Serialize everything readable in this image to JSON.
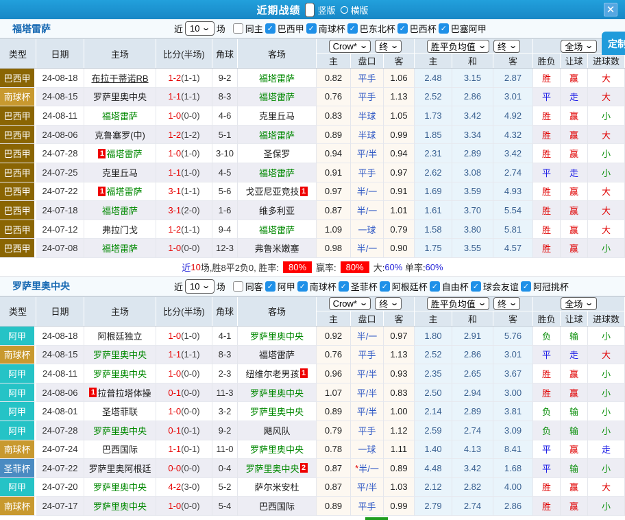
{
  "title_bar": {
    "title": "近期战绩",
    "radios": [
      {
        "label": "竖版",
        "selected": true
      },
      {
        "label": "横版",
        "selected": false
      }
    ]
  },
  "icons": {
    "close": "✕",
    "check": "✓",
    "dropdown": "⌄"
  },
  "customize_button": "定制",
  "league_colors": {
    "巴西甲": "#8a6503",
    "南球杯": "#c8992f",
    "阿甲": "#25c3c6",
    "圣菲杯": "#4a8bc2"
  },
  "result_colors": {
    "胜": "#e00000",
    "赢": "#e00000",
    "大": "#e00000",
    "平": "#1a1ae6",
    "走": "#1a1ae6",
    "负": "#0a8f0a",
    "输": "#0a8f0a",
    "小": "#0a8f0a"
  },
  "header": {
    "left": [
      "类型",
      "日期",
      "主场",
      "比分(半场)",
      "角球",
      "客场"
    ],
    "sub": [
      "主",
      "盘口",
      "客",
      "主",
      "和",
      "客",
      "胜负",
      "让球",
      "进球数"
    ],
    "selects": {
      "company": "Crow*",
      "final1": "终",
      "mean": "胜平负均值",
      "final2": "终",
      "scope": "全场"
    }
  },
  "sections": [
    {
      "team": "福塔雷萨",
      "filter": {
        "prefix": "近",
        "count": "10",
        "suffix": "场",
        "same_label": "同主",
        "same_checked": false,
        "leagues": [
          "巴西甲",
          "南球杯",
          "巴东北杯",
          "巴西杯",
          "巴塞阿甲"
        ]
      },
      "rows": [
        {
          "lg": "巴西甲",
          "date": "24-08-18",
          "home": "布拉干蒂诺RB",
          "hU": true,
          "score": "1-2",
          "half": "(1-1)",
          "corner": "9-2",
          "away": "福塔雷萨",
          "aG": true,
          "o1": "0.82",
          "hcap": "平手",
          "o2": "1.06",
          "m1": "2.48",
          "m2": "3.15",
          "m3": "2.87",
          "r1": "胜",
          "r2": "赢",
          "r3": "大"
        },
        {
          "lg": "南球杯",
          "date": "24-08-15",
          "home": "罗萨里奥中央",
          "score": "1-1",
          "half": "(1-1)",
          "corner": "8-3",
          "away": "福塔雷萨",
          "aG": true,
          "o1": "0.76",
          "hcap": "平手",
          "o2": "1.13",
          "m1": "2.52",
          "m2": "2.86",
          "m3": "3.01",
          "r1": "平",
          "r2": "走",
          "r3": "大"
        },
        {
          "lg": "巴西甲",
          "date": "24-08-11",
          "home": "福塔雷萨",
          "hG": true,
          "score": "1-0",
          "half": "(0-0)",
          "corner": "4-6",
          "away": "克里丘马",
          "o1": "0.83",
          "hcap": "半球",
          "o2": "1.05",
          "m1": "1.73",
          "m2": "3.42",
          "m3": "4.92",
          "r1": "胜",
          "r2": "赢",
          "r3": "小"
        },
        {
          "lg": "巴西甲",
          "date": "24-08-06",
          "home": "克鲁塞罗(中)",
          "score": "1-2",
          "half": "(1-2)",
          "corner": "5-1",
          "away": "福塔雷萨",
          "aG": true,
          "o1": "0.89",
          "hcap": "半球",
          "o2": "0.99",
          "m1": "1.85",
          "m2": "3.34",
          "m3": "4.32",
          "r1": "胜",
          "r2": "赢",
          "r3": "大"
        },
        {
          "lg": "巴西甲",
          "date": "24-07-28",
          "home": "福塔雷萨",
          "hG": true,
          "hCard": "1",
          "score": "1-0",
          "half": "(1-0)",
          "corner": "3-10",
          "away": "圣保罗",
          "o1": "0.94",
          "hcap": "平/半",
          "o2": "0.94",
          "m1": "2.31",
          "m2": "2.89",
          "m3": "3.42",
          "r1": "胜",
          "r2": "赢",
          "r3": "小"
        },
        {
          "lg": "巴西甲",
          "date": "24-07-25",
          "home": "克里丘马",
          "score": "1-1",
          "half": "(1-0)",
          "corner": "4-5",
          "away": "福塔雷萨",
          "aG": true,
          "o1": "0.91",
          "hcap": "平手",
          "o2": "0.97",
          "m1": "2.62",
          "m2": "3.08",
          "m3": "2.74",
          "r1": "平",
          "r2": "走",
          "r3": "小"
        },
        {
          "lg": "巴西甲",
          "date": "24-07-22",
          "home": "福塔雷萨",
          "hG": true,
          "hCard": "1",
          "score": "3-1",
          "half": "(1-1)",
          "corner": "5-6",
          "away": "戈亚尼亚竞技",
          "aCard": "1",
          "o1": "0.97",
          "hcap": "半/一",
          "o2": "0.91",
          "m1": "1.69",
          "m2": "3.59",
          "m3": "4.93",
          "r1": "胜",
          "r2": "赢",
          "r3": "大"
        },
        {
          "lg": "巴西甲",
          "date": "24-07-18",
          "home": "福塔雷萨",
          "hG": true,
          "score": "3-1",
          "half": "(2-0)",
          "corner": "1-6",
          "away": "维多利亚",
          "o1": "0.87",
          "hcap": "半/一",
          "o2": "1.01",
          "m1": "1.61",
          "m2": "3.70",
          "m3": "5.54",
          "r1": "胜",
          "r2": "赢",
          "r3": "大"
        },
        {
          "lg": "巴西甲",
          "date": "24-07-12",
          "home": "弗拉门戈",
          "score": "1-2",
          "half": "(1-1)",
          "corner": "9-4",
          "away": "福塔雷萨",
          "aG": true,
          "o1": "1.09",
          "hcap": "一球",
          "o2": "0.79",
          "m1": "1.58",
          "m2": "3.80",
          "m3": "5.81",
          "r1": "胜",
          "r2": "赢",
          "r3": "大"
        },
        {
          "lg": "巴西甲",
          "date": "24-07-08",
          "home": "福塔雷萨",
          "hG": true,
          "score": "1-0",
          "half": "(0-0)",
          "corner": "12-3",
          "away": "弗鲁米嫩塞",
          "o1": "0.98",
          "hcap": "半/一",
          "o2": "0.90",
          "m1": "1.75",
          "m2": "3.55",
          "m3": "4.57",
          "r1": "胜",
          "r2": "赢",
          "r3": "小"
        }
      ],
      "summary": {
        "lead": "近",
        "count": "10",
        "text1": "场,胜8平2负0, 胜率:",
        "badge1": "80%",
        "text2": "赢率:",
        "badge2": "80%",
        "text3": "大:",
        "val1": "60%",
        "text4": "单率:",
        "val2": "60%"
      }
    },
    {
      "team": "罗萨里奥中央",
      "filter": {
        "prefix": "近",
        "count": "10",
        "suffix": "场",
        "same_label": "同客",
        "same_checked": false,
        "leagues": [
          "阿甲",
          "南球杯",
          "圣菲杯",
          "阿根廷杯",
          "自由杯",
          "球会友谊",
          "阿冠挑杯"
        ]
      },
      "rows": [
        {
          "lg": "阿甲",
          "date": "24-08-18",
          "home": "阿根廷独立",
          "score": "1-0",
          "half": "(1-0)",
          "corner": "4-1",
          "away": "罗萨里奥中央",
          "aG": true,
          "o1": "0.92",
          "hcap": "半/一",
          "o2": "0.97",
          "m1": "1.80",
          "m2": "2.91",
          "m3": "5.76",
          "r1": "负",
          "r2": "输",
          "r3": "小"
        },
        {
          "lg": "南球杯",
          "date": "24-08-15",
          "home": "罗萨里奥中央",
          "hG": true,
          "score": "1-1",
          "half": "(1-1)",
          "corner": "8-3",
          "away": "福塔雷萨",
          "o1": "0.76",
          "hcap": "平手",
          "o2": "1.13",
          "m1": "2.52",
          "m2": "2.86",
          "m3": "3.01",
          "r1": "平",
          "r2": "走",
          "r3": "大"
        },
        {
          "lg": "阿甲",
          "date": "24-08-11",
          "home": "罗萨里奥中央",
          "hG": true,
          "score": "1-0",
          "half": "(0-0)",
          "corner": "2-3",
          "away": "纽维尔老男孩",
          "aCard": "1",
          "o1": "0.96",
          "hcap": "平/半",
          "o2": "0.93",
          "m1": "2.35",
          "m2": "2.65",
          "m3": "3.67",
          "r1": "胜",
          "r2": "赢",
          "r3": "小"
        },
        {
          "lg": "阿甲",
          "date": "24-08-06",
          "home": "拉普拉塔体操",
          "hCard": "1",
          "score": "0-1",
          "half": "(0-0)",
          "corner": "11-3",
          "away": "罗萨里奥中央",
          "aG": true,
          "o1": "1.07",
          "hcap": "平/半",
          "o2": "0.83",
          "m1": "2.50",
          "m2": "2.94",
          "m3": "3.00",
          "r1": "胜",
          "r2": "赢",
          "r3": "小"
        },
        {
          "lg": "阿甲",
          "date": "24-08-01",
          "home": "圣塔菲联",
          "score": "1-0",
          "half": "(0-0)",
          "corner": "3-2",
          "away": "罗萨里奥中央",
          "aG": true,
          "o1": "0.89",
          "hcap": "平/半",
          "o2": "1.00",
          "m1": "2.14",
          "m2": "2.89",
          "m3": "3.81",
          "r1": "负",
          "r2": "输",
          "r3": "小"
        },
        {
          "lg": "阿甲",
          "date": "24-07-28",
          "home": "罗萨里奥中央",
          "hG": true,
          "score": "0-1",
          "half": "(0-1)",
          "corner": "9-2",
          "away": "飓风队",
          "o1": "0.79",
          "hcap": "平手",
          "o2": "1.12",
          "m1": "2.59",
          "m2": "2.74",
          "m3": "3.09",
          "r1": "负",
          "r2": "输",
          "r3": "小"
        },
        {
          "lg": "南球杯",
          "date": "24-07-24",
          "home": "巴西国际",
          "score": "1-1",
          "half": "(0-1)",
          "corner": "11-0",
          "away": "罗萨里奥中央",
          "aG": true,
          "o1": "0.78",
          "hcap": "一球",
          "o2": "1.11",
          "m1": "1.40",
          "m2": "4.13",
          "m3": "8.41",
          "r1": "平",
          "r2": "赢",
          "r3": "走"
        },
        {
          "lg": "圣菲杯",
          "date": "24-07-22",
          "home": "罗萨里奥阿根廷",
          "score": "0-0",
          "half": "(0-0)",
          "corner": "0-4",
          "away": "罗萨里奥中央",
          "aG": true,
          "aCard": "2",
          "o1": "0.87",
          "hcap": "半/一",
          "hStar": true,
          "o2": "0.89",
          "m1": "4.48",
          "m2": "3.42",
          "m3": "1.68",
          "r1": "平",
          "r2": "输",
          "r3": "小"
        },
        {
          "lg": "阿甲",
          "date": "24-07-20",
          "home": "罗萨里奥中央",
          "hG": true,
          "score": "4-2",
          "half": "(3-0)",
          "corner": "5-2",
          "away": "萨尔米安杜",
          "o1": "0.87",
          "hcap": "平/半",
          "o2": "1.03",
          "m1": "2.12",
          "m2": "2.82",
          "m3": "4.00",
          "r1": "胜",
          "r2": "赢",
          "r3": "大"
        },
        {
          "lg": "南球杯",
          "date": "24-07-17",
          "home": "罗萨里奥中央",
          "hG": true,
          "score": "1-0",
          "half": "(0-0)",
          "corner": "5-4",
          "away": "巴西国际",
          "o1": "0.89",
          "hcap": "平手",
          "o2": "0.99",
          "m1": "2.79",
          "m2": "2.74",
          "m3": "2.86",
          "r1": "胜",
          "r2": "赢",
          "r3": "小"
        }
      ],
      "summary_partial": {
        "badge_color": "#1f9e1f"
      }
    }
  ]
}
